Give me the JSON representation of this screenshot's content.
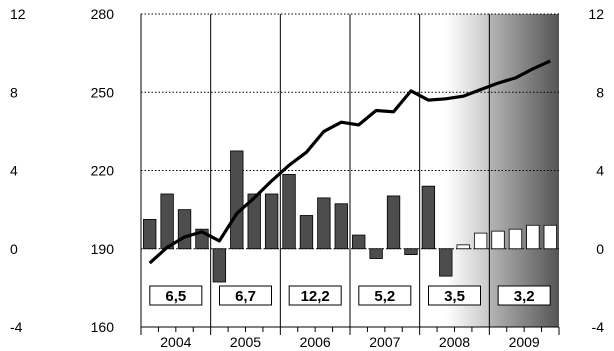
{
  "chart_data": {
    "type": "bar",
    "title": "",
    "xlabel": "",
    "years": [
      "2004",
      "2005",
      "2006",
      "2007",
      "2008",
      "2009"
    ],
    "year_boxes": [
      "6,5",
      "6,7",
      "12,2",
      "5,2",
      "3,5",
      "3,2"
    ],
    "left_axis": {
      "ticks": [
        "12",
        "8",
        "4",
        "0",
        "-4"
      ],
      "min": -4,
      "max": 12
    },
    "mid_axis": {
      "ticks": [
        "280",
        "250",
        "220",
        "190",
        "160"
      ],
      "min": 160,
      "max": 280
    },
    "right_axis": {
      "ticks": [
        "12",
        "8",
        "4",
        "0",
        "-4"
      ],
      "min": -4,
      "max": 12
    },
    "bars": {
      "name": "",
      "axis": "left/right",
      "values": [
        1.5,
        2.8,
        2.0,
        1.0,
        -1.7,
        5.0,
        2.8,
        2.8,
        3.8,
        1.7,
        2.6,
        2.3,
        0.7,
        -0.5,
        2.7,
        -0.3,
        3.2,
        -1.4,
        0.2,
        0.8,
        0.9,
        1.0,
        1.2,
        1.2
      ],
      "forecast_from_index": 18
    },
    "line": {
      "name": "",
      "axis": "mid",
      "values": [
        184.5,
        190.5,
        194.5,
        196.5,
        193,
        203.5,
        209.5,
        216,
        222,
        227,
        235,
        238.5,
        237.5,
        243,
        242.5,
        250.5,
        247,
        247.5,
        248.5,
        251,
        253.5,
        255.5,
        259,
        262
      ]
    },
    "shading": {
      "light_start_year_index": 4,
      "dark_start_year_index": 5
    },
    "colors": {
      "bar": "#4d4d4d",
      "forecast_bar": "#ffffff",
      "line": "#000000",
      "grid": "#000000"
    }
  }
}
